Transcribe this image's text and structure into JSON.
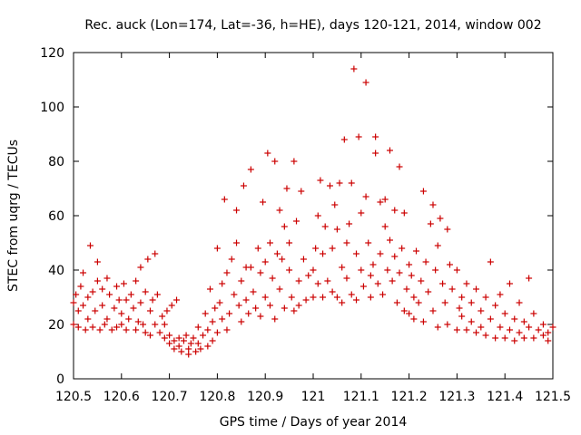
{
  "chart_data": {
    "type": "scatter",
    "title": "Rec. auck (Lon=174, Lat=-36, h=HE), days 120-121, 2014, window 002",
    "xlabel": "GPS time / Days of year 2014",
    "ylabel": "STEC from uqrg / TECUs",
    "xlim": [
      120.5,
      121.5
    ],
    "ylim": [
      0,
      120
    ],
    "x_ticks": [
      120.5,
      120.6,
      120.7,
      120.8,
      120.9,
      121,
      121.1,
      121.2,
      121.3,
      121.4,
      121.5
    ],
    "x_tick_labels": [
      "120.5",
      "120.6",
      "120.7",
      "120.8",
      "120.9",
      "121",
      "121.1",
      "121.2",
      "121.3",
      "121.4",
      "121.5"
    ],
    "y_ticks": [
      0,
      20,
      40,
      60,
      80,
      100,
      120
    ],
    "y_tick_labels": [
      "0",
      "20",
      "40",
      "60",
      "80",
      "100",
      "120"
    ],
    "grid": false,
    "legend": "none",
    "marker": "plus",
    "color": "#cc0000",
    "series": [
      {
        "points": [
          [
            120.5,
            20
          ],
          [
            120.5,
            28
          ],
          [
            120.505,
            31
          ],
          [
            120.51,
            19
          ],
          [
            120.51,
            25
          ],
          [
            120.515,
            34
          ],
          [
            120.52,
            27
          ],
          [
            120.52,
            39
          ],
          [
            120.525,
            18
          ],
          [
            120.53,
            22
          ],
          [
            120.53,
            30
          ],
          [
            120.535,
            49
          ],
          [
            120.54,
            32
          ],
          [
            120.54,
            19
          ],
          [
            120.545,
            25
          ],
          [
            120.55,
            36
          ],
          [
            120.55,
            43
          ],
          [
            120.555,
            18
          ],
          [
            120.56,
            27
          ],
          [
            120.56,
            33
          ],
          [
            120.565,
            20
          ],
          [
            120.57,
            37
          ],
          [
            120.57,
            22
          ],
          [
            120.575,
            31
          ],
          [
            120.58,
            18
          ],
          [
            120.585,
            26
          ],
          [
            120.59,
            34
          ],
          [
            120.59,
            19
          ],
          [
            120.595,
            29
          ],
          [
            120.6,
            24
          ],
          [
            120.6,
            20
          ],
          [
            120.605,
            35
          ],
          [
            120.61,
            29
          ],
          [
            120.61,
            18
          ],
          [
            120.615,
            22
          ],
          [
            120.62,
            31
          ],
          [
            120.625,
            26
          ],
          [
            120.63,
            36
          ],
          [
            120.63,
            18
          ],
          [
            120.635,
            21
          ],
          [
            120.64,
            41
          ],
          [
            120.64,
            28
          ],
          [
            120.645,
            20
          ],
          [
            120.65,
            32
          ],
          [
            120.65,
            17
          ],
          [
            120.655,
            44
          ],
          [
            120.66,
            25
          ],
          [
            120.66,
            16
          ],
          [
            120.665,
            29
          ],
          [
            120.67,
            46
          ],
          [
            120.67,
            20
          ],
          [
            120.675,
            31
          ],
          [
            120.68,
            17
          ],
          [
            120.685,
            23
          ],
          [
            120.69,
            15
          ],
          [
            120.69,
            20
          ],
          [
            120.695,
            25
          ],
          [
            120.7,
            16
          ],
          [
            120.7,
            13
          ],
          [
            120.705,
            27
          ],
          [
            120.71,
            14
          ],
          [
            120.71,
            11
          ],
          [
            120.715,
            29
          ],
          [
            120.72,
            15
          ],
          [
            120.72,
            12
          ],
          [
            120.725,
            10
          ],
          [
            120.73,
            14
          ],
          [
            120.735,
            16
          ],
          [
            120.74,
            11
          ],
          [
            120.74,
            9
          ],
          [
            120.745,
            13
          ],
          [
            120.75,
            15
          ],
          [
            120.755,
            10
          ],
          [
            120.76,
            19
          ],
          [
            120.76,
            13
          ],
          [
            120.765,
            11
          ],
          [
            120.77,
            16
          ],
          [
            120.775,
            24
          ],
          [
            120.78,
            12
          ],
          [
            120.78,
            18
          ],
          [
            120.785,
            33
          ],
          [
            120.79,
            21
          ],
          [
            120.79,
            14
          ],
          [
            120.795,
            26
          ],
          [
            120.8,
            48
          ],
          [
            120.8,
            17
          ],
          [
            120.805,
            28
          ],
          [
            120.81,
            35
          ],
          [
            120.81,
            22
          ],
          [
            120.815,
            66
          ],
          [
            120.82,
            39
          ],
          [
            120.82,
            18
          ],
          [
            120.825,
            24
          ],
          [
            120.83,
            44
          ],
          [
            120.835,
            31
          ],
          [
            120.84,
            62
          ],
          [
            120.84,
            50
          ],
          [
            120.845,
            27
          ],
          [
            120.85,
            21
          ],
          [
            120.85,
            36
          ],
          [
            120.855,
            71
          ],
          [
            120.86,
            41
          ],
          [
            120.86,
            29
          ],
          [
            120.865,
            24
          ],
          [
            120.87,
            77
          ],
          [
            120.87,
            41
          ],
          [
            120.875,
            32
          ],
          [
            120.88,
            26
          ],
          [
            120.885,
            48
          ],
          [
            120.89,
            39
          ],
          [
            120.89,
            23
          ],
          [
            120.895,
            65
          ],
          [
            120.9,
            30
          ],
          [
            120.9,
            43
          ],
          [
            120.905,
            83
          ],
          [
            120.91,
            27
          ],
          [
            120.91,
            50
          ],
          [
            120.915,
            37
          ],
          [
            120.92,
            80
          ],
          [
            120.92,
            22
          ],
          [
            120.925,
            46
          ],
          [
            120.93,
            62
          ],
          [
            120.93,
            33
          ],
          [
            120.935,
            44
          ],
          [
            120.94,
            56
          ],
          [
            120.94,
            26
          ],
          [
            120.945,
            70
          ],
          [
            120.95,
            50
          ],
          [
            120.95,
            40
          ],
          [
            120.955,
            30
          ],
          [
            120.96,
            80
          ],
          [
            120.96,
            25
          ],
          [
            120.965,
            58
          ],
          [
            120.97,
            36
          ],
          [
            120.97,
            27
          ],
          [
            120.975,
            69
          ],
          [
            120.98,
            44
          ],
          [
            120.985,
            29
          ],
          [
            120.99,
            38
          ],
          [
            121.0,
            30
          ],
          [
            121.0,
            40
          ],
          [
            121.005,
            48
          ],
          [
            121.01,
            35
          ],
          [
            121.01,
            60
          ],
          [
            121.015,
            73
          ],
          [
            121.02,
            46
          ],
          [
            121.02,
            30
          ],
          [
            121.025,
            56
          ],
          [
            121.03,
            36
          ],
          [
            121.035,
            71
          ],
          [
            121.04,
            48
          ],
          [
            121.04,
            32
          ],
          [
            121.045,
            64
          ],
          [
            121.05,
            30
          ],
          [
            121.05,
            55
          ],
          [
            121.055,
            72
          ],
          [
            121.06,
            41
          ],
          [
            121.06,
            28
          ],
          [
            121.065,
            88
          ],
          [
            121.07,
            50
          ],
          [
            121.07,
            37
          ],
          [
            121.075,
            57
          ],
          [
            121.08,
            72
          ],
          [
            121.08,
            31
          ],
          [
            121.085,
            114
          ],
          [
            121.09,
            46
          ],
          [
            121.09,
            29
          ],
          [
            121.095,
            89
          ],
          [
            121.1,
            61
          ],
          [
            121.1,
            40
          ],
          [
            121.105,
            34
          ],
          [
            121.11,
            109
          ],
          [
            121.11,
            67
          ],
          [
            121.115,
            50
          ],
          [
            121.12,
            38
          ],
          [
            121.12,
            30
          ],
          [
            121.125,
            42
          ],
          [
            121.13,
            89
          ],
          [
            121.13,
            83
          ],
          [
            121.135,
            35
          ],
          [
            121.14,
            46
          ],
          [
            121.14,
            65
          ],
          [
            121.145,
            31
          ],
          [
            121.15,
            56
          ],
          [
            121.15,
            66
          ],
          [
            121.155,
            40
          ],
          [
            121.16,
            84
          ],
          [
            121.16,
            51
          ],
          [
            121.165,
            36
          ],
          [
            121.17,
            62
          ],
          [
            121.17,
            45
          ],
          [
            121.175,
            28
          ],
          [
            121.18,
            78
          ],
          [
            121.18,
            39
          ],
          [
            121.185,
            48
          ],
          [
            121.19,
            61
          ],
          [
            121.19,
            25
          ],
          [
            121.195,
            33
          ],
          [
            121.2,
            42
          ],
          [
            121.2,
            24
          ],
          [
            121.205,
            38
          ],
          [
            121.21,
            30
          ],
          [
            121.21,
            22
          ],
          [
            121.215,
            47
          ],
          [
            121.22,
            28
          ],
          [
            121.225,
            36
          ],
          [
            121.23,
            69
          ],
          [
            121.23,
            21
          ],
          [
            121.235,
            43
          ],
          [
            121.24,
            32
          ],
          [
            121.245,
            57
          ],
          [
            121.25,
            25
          ],
          [
            121.25,
            64
          ],
          [
            121.255,
            40
          ],
          [
            121.26,
            49
          ],
          [
            121.26,
            19
          ],
          [
            121.265,
            59
          ],
          [
            121.27,
            35
          ],
          [
            121.275,
            28
          ],
          [
            121.28,
            55
          ],
          [
            121.28,
            20
          ],
          [
            121.285,
            42
          ],
          [
            121.29,
            33
          ],
          [
            121.3,
            40
          ],
          [
            121.3,
            18
          ],
          [
            121.305,
            26
          ],
          [
            121.31,
            30
          ],
          [
            121.31,
            23
          ],
          [
            121.32,
            35
          ],
          [
            121.32,
            18
          ],
          [
            121.33,
            28
          ],
          [
            121.33,
            21
          ],
          [
            121.34,
            33
          ],
          [
            121.34,
            17
          ],
          [
            121.35,
            25
          ],
          [
            121.35,
            19
          ],
          [
            121.36,
            30
          ],
          [
            121.36,
            16
          ],
          [
            121.37,
            43
          ],
          [
            121.37,
            22
          ],
          [
            121.38,
            27
          ],
          [
            121.38,
            15
          ],
          [
            121.39,
            31
          ],
          [
            121.39,
            19
          ],
          [
            121.4,
            24
          ],
          [
            121.4,
            15
          ],
          [
            121.41,
            35
          ],
          [
            121.41,
            18
          ],
          [
            121.42,
            22
          ],
          [
            121.42,
            14
          ],
          [
            121.43,
            28
          ],
          [
            121.43,
            17
          ],
          [
            121.44,
            21
          ],
          [
            121.44,
            15
          ],
          [
            121.45,
            37
          ],
          [
            121.45,
            19
          ],
          [
            121.46,
            24
          ],
          [
            121.46,
            15
          ],
          [
            121.47,
            18
          ],
          [
            121.48,
            16
          ],
          [
            121.48,
            20
          ],
          [
            121.49,
            14
          ],
          [
            121.49,
            17
          ],
          [
            121.5,
            19
          ]
        ]
      }
    ]
  }
}
